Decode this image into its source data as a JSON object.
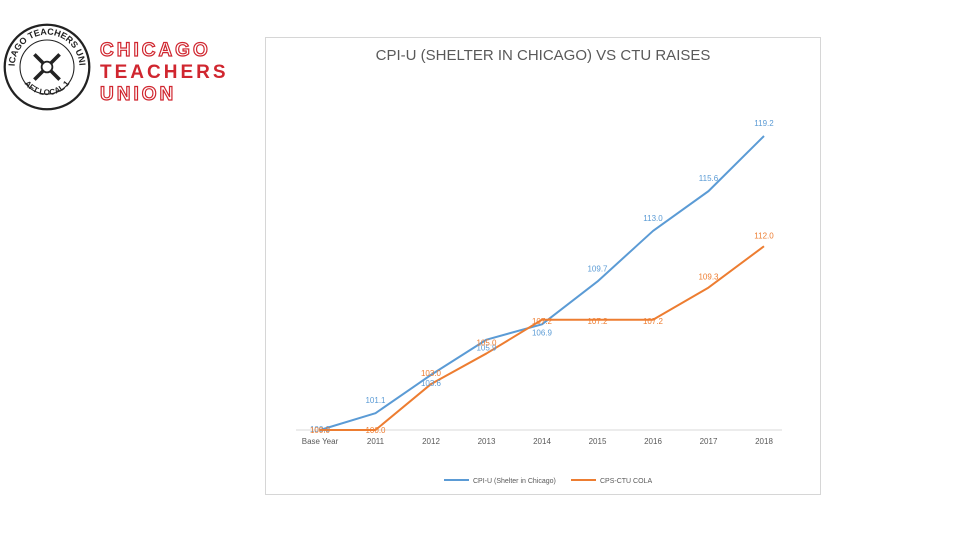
{
  "org": {
    "name_line1": "CHICAGO",
    "name_line2": "TEACHERS",
    "name_line3": "UNION",
    "seal_top_text": "CHICAGO TEACHERS UNION",
    "seal_bottom_text": "AFT LOCAL 1",
    "brand_color": "#d0262f"
  },
  "chart_data": {
    "type": "line",
    "title": "CPI-U (SHELTER IN CHICAGO) VS CTU RAISES",
    "categories": [
      "Base Year",
      "2011",
      "2012",
      "2013",
      "2014",
      "2015",
      "2016",
      "2017",
      "2018"
    ],
    "series": [
      {
        "name": "CPI-U (Shelter in Chicago)",
        "color": "#5b9bd5",
        "values": [
          100.0,
          101.1,
          103.6,
          105.9,
          106.9,
          109.7,
          113.0,
          115.6,
          119.2
        ]
      },
      {
        "name": "CPS-CTU COLA",
        "color": "#ed7d31",
        "values": [
          100.0,
          100.0,
          103.0,
          105.0,
          107.2,
          107.2,
          107.2,
          109.3,
          112.0
        ]
      }
    ],
    "xlabel": "",
    "ylabel": "",
    "ylim": [
      100,
      119.2
    ],
    "grid": false,
    "legend_position": "bottom"
  }
}
